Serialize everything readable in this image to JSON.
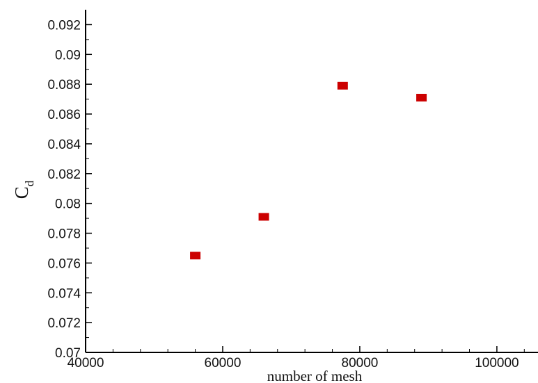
{
  "chart_data": {
    "type": "scatter",
    "xlabel": "number of mesh",
    "ylabel_main": "C",
    "ylabel_sub": "d",
    "xlim": [
      40000,
      106000
    ],
    "ylim": [
      0.07,
      0.093
    ],
    "x_ticks": [
      "40000",
      "60000",
      "80000",
      "100000"
    ],
    "y_ticks": [
      "0.07",
      "0.072",
      "0.074",
      "0.076",
      "0.078",
      "0.08",
      "0.082",
      "0.084",
      "0.086",
      "0.088",
      "0.09",
      "0.092"
    ],
    "grid": false,
    "marker_color": "#cc0000",
    "series": [
      {
        "points": [
          {
            "x": 56000,
            "y": 0.0765
          },
          {
            "x": 66000,
            "y": 0.0791
          },
          {
            "x": 77500,
            "y": 0.0879
          },
          {
            "x": 89000,
            "y": 0.0871
          }
        ]
      }
    ]
  }
}
